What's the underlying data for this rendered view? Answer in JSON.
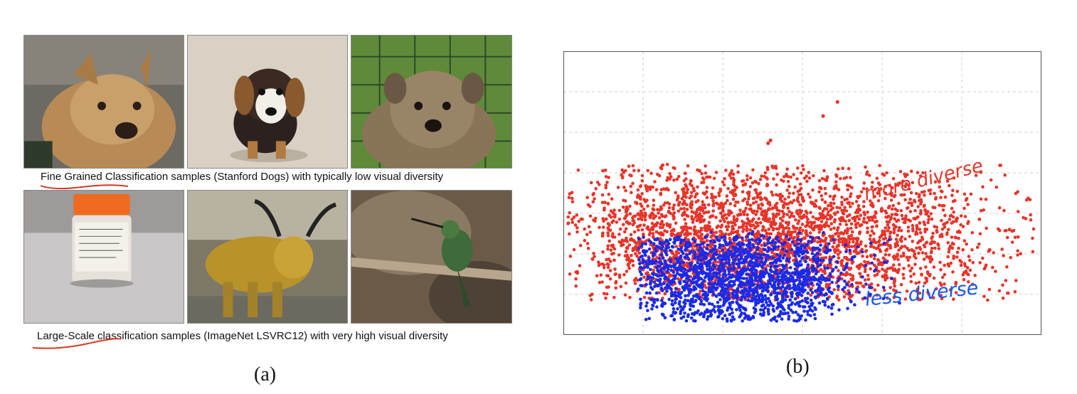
{
  "panel_a": {
    "caption_top": "Fine Grained Classification samples (Stanford Dogs) with typically low visual diversity",
    "caption_bottom": "Large-Scale classification samples (ImageNet LSVRC12) with very high visual diversity",
    "label": "(a)",
    "photos_top": [
      "terrier-photo",
      "beagle-puppy-photo",
      "puppy-on-grass-photo"
    ],
    "photos_bottom": [
      "specimen-jar-photo",
      "golden-bull-statue-photo",
      "hummingbird-on-branch-photo"
    ]
  },
  "panel_b": {
    "label": "(b)",
    "annotation_more": "more diverse",
    "annotation_less": "less diverse",
    "color_more": "#e8342a",
    "color_less": "#1a2ae8"
  },
  "chart_data": {
    "type": "scatter",
    "grid": true,
    "xlim": [
      0,
      6
    ],
    "ylim": [
      0,
      7
    ],
    "series": [
      {
        "color": "#e8342a",
        "points": [
          [
            3.44,
            5.75
          ],
          [
            3.26,
            5.4
          ],
          [
            2.6,
            4.8
          ],
          [
            2.57,
            4.73
          ],
          [
            1.71,
            4.05
          ],
          [
            1.6,
            3.8
          ],
          [
            5.6,
            2.6
          ],
          [
            5.35,
            2.1
          ],
          [
            3.95,
            1.85
          ],
          [
            4.1,
            2.2
          ]
        ]
      },
      {
        "color": "#1a2ae8",
        "points": [
          [
            3.45,
            1.2
          ],
          [
            3.85,
            1.0
          ],
          [
            2.6,
            1.6
          ],
          [
            3.05,
            1.35
          ]
        ]
      }
    ]
  }
}
